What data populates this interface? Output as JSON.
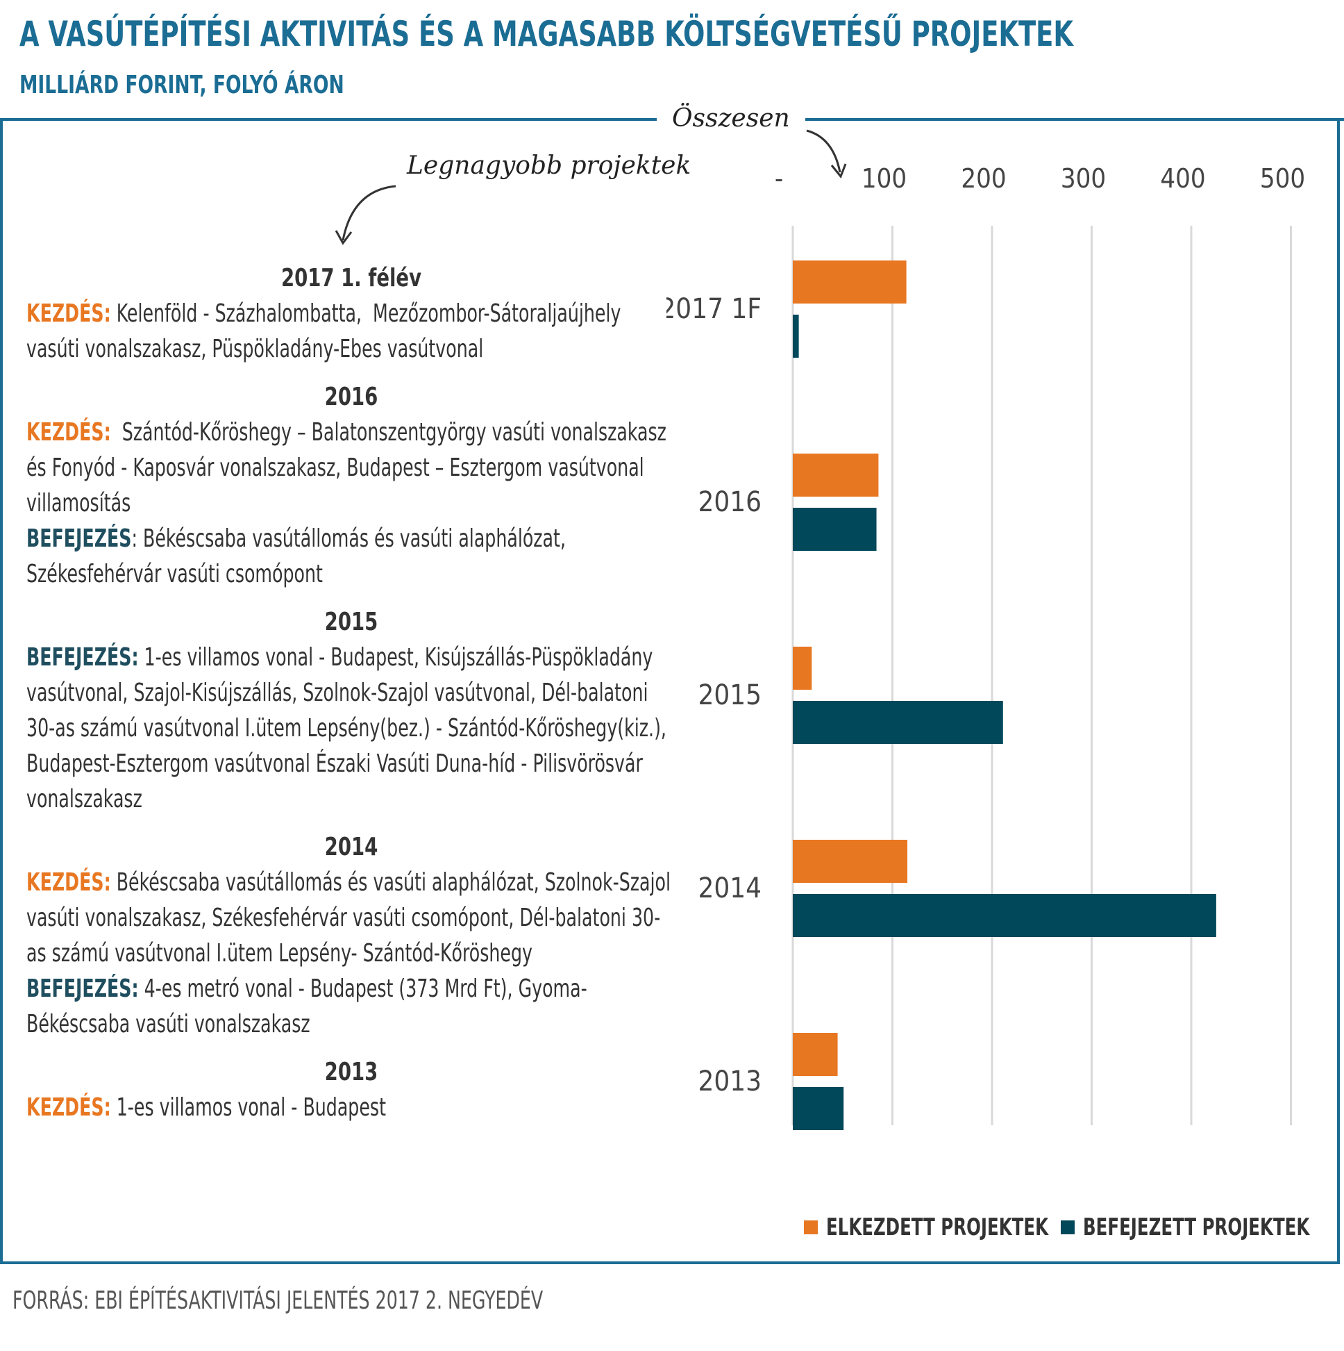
{
  "header": {
    "title": "A VASÚTÉPÍTÉSI AKTIVITÁS ÉS A MAGASABB KÖLTSÉGVETÉSŰ PROJEKTEK",
    "subtitle": "MILLIÁRD FORINT, FOLYÓ ÁRON"
  },
  "annotations": {
    "total": "Összesen",
    "largest_projects": "Legnagyobb projektek"
  },
  "labels": {
    "start": "KEZDÉS:",
    "end": "BEFEJEZÉS:"
  },
  "projects": [
    {
      "year": "2017 1. félév",
      "lines": [
        {
          "label": "KEZDÉS:",
          "type": "start",
          "text": " Kelenföld - Százhalombatta,  Mezőzombor-Sátoraljaújhely"
        },
        {
          "text": "vasúti vonalszakasz, Püspökladány-Ebes vasútvonal"
        }
      ]
    },
    {
      "year": "2016",
      "lines": [
        {
          "label": "KEZDÉS:",
          "type": "start",
          "text": "  Szántód-Kőröshegy – Balatonszentgyörgy vasúti vonalszakasz"
        },
        {
          "text": "és Fonyód - Kaposvár vonalszakasz, Budapest – Esztergom vasútvonal"
        },
        {
          "text": "villamosítás"
        },
        {
          "label": "BEFEJEZÉS",
          "type": "end",
          "text": ": Békéscsaba vasútállomás és vasúti alaphálózat,"
        },
        {
          "text": "Székesfehérvár vasúti csomópont"
        }
      ]
    },
    {
      "year": "2015",
      "lines": [
        {
          "label": "BEFEJEZÉS:",
          "type": "end",
          "text": " 1-es villamos vonal - Budapest, Kisújszállás-Püspökladány"
        },
        {
          "text": "vasútvonal, Szajol-Kisújszállás, Szolnok-Szajol vasútvonal, Dél-balatoni"
        },
        {
          "text": "30-as számú vasútvonal I.ütem Lepsény(bez.) - Szántód-Kőröshegy(kiz.),"
        },
        {
          "text": "Budapest-Esztergom vasútvonal Északi Vasúti Duna-híd - Pilisvörösvár"
        },
        {
          "text": "vonalszakasz"
        }
      ]
    },
    {
      "year": "2014",
      "lines": [
        {
          "label": "KEZDÉS:",
          "type": "start",
          "text": " Békéscsaba vasútállomás és vasúti alaphálózat, Szolnok-Szajol"
        },
        {
          "text": "vasúti vonalszakasz, Székesfehérvár vasúti csomópont, Dél-balatoni 30-"
        },
        {
          "text": "as számú vasútvonal I.ütem Lepsény- Szántód-Kőröshegy"
        },
        {
          "label": "BEFEJEZÉS:",
          "type": "end",
          "text": " 4-es metró vonal - Budapest (373 Mrd Ft), Gyoma-"
        },
        {
          "text": "Békéscsaba vasúti vonalszakasz"
        }
      ]
    },
    {
      "year": "2013",
      "lines": [
        {
          "label": "KEZDÉS:",
          "type": "start",
          "text": " 1-es villamos vonal - Budapest"
        }
      ]
    }
  ],
  "chart_data": {
    "type": "bar",
    "orientation": "horizontal",
    "categories": [
      "2017 1F",
      "2016",
      "2015",
      "2014",
      "2013"
    ],
    "series": [
      {
        "name": "ELKEZDETT PROJEKTEK",
        "color": "#e87722",
        "values": [
          114,
          86,
          19,
          115,
          45
        ]
      },
      {
        "name": "BEFEJEZETT PROJEKTEK",
        "color": "#00485a",
        "values": [
          6,
          84,
          211,
          425,
          51
        ]
      }
    ],
    "x_ticks": [
      "-",
      "100",
      "200",
      "300",
      "400",
      "500"
    ],
    "xlim": [
      0,
      500
    ],
    "grid": true,
    "legend_position": "bottom-right"
  },
  "source": "FORRÁS: EBI ÉPÍTÉSAKTIVITÁSI JELENTÉS 2017 2. NEGYEDÉV"
}
